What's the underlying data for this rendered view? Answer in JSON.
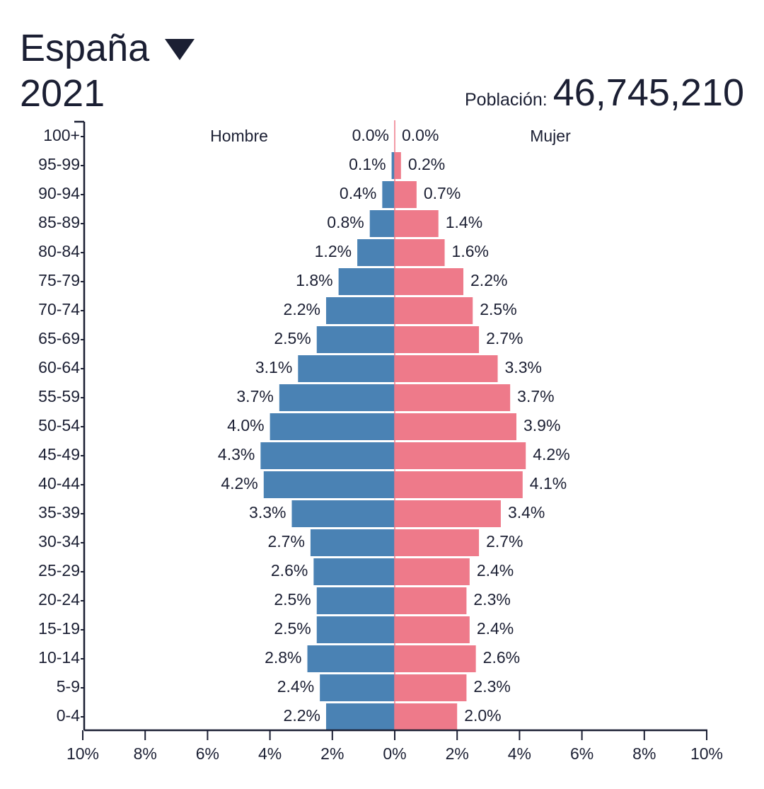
{
  "header": {
    "country": "España",
    "year": "2021",
    "population_label": "Población:",
    "population_value": "46,745,210"
  },
  "colors": {
    "male": "#4a82b4",
    "female": "#ee7a8a",
    "text": "#1b1f33"
  },
  "icons": {
    "country_dropdown": "triangle-down-icon"
  },
  "chart_data": {
    "type": "bar",
    "orientation": "horizontal",
    "layout": "population-pyramid",
    "categories": [
      "0-4",
      "5-9",
      "10-14",
      "15-19",
      "20-24",
      "25-29",
      "30-34",
      "35-39",
      "40-44",
      "45-49",
      "50-54",
      "55-59",
      "60-64",
      "65-69",
      "70-74",
      "75-79",
      "80-84",
      "85-89",
      "90-94",
      "95-99",
      "100+"
    ],
    "series": [
      {
        "name": "Hombre",
        "side": "left",
        "values": [
          2.2,
          2.4,
          2.8,
          2.5,
          2.5,
          2.6,
          2.7,
          3.3,
          4.2,
          4.3,
          4.0,
          3.7,
          3.1,
          2.5,
          2.2,
          1.8,
          1.2,
          0.8,
          0.4,
          0.1,
          0.0
        ]
      },
      {
        "name": "Mujer",
        "side": "right",
        "values": [
          2.0,
          2.3,
          2.6,
          2.4,
          2.3,
          2.4,
          2.7,
          3.4,
          4.1,
          4.2,
          3.9,
          3.7,
          3.3,
          2.7,
          2.5,
          2.2,
          1.6,
          1.4,
          0.7,
          0.2,
          0.0
        ]
      }
    ],
    "unit": "%",
    "xlim": [
      -10,
      10
    ],
    "xticks": [
      "10%",
      "8%",
      "6%",
      "4%",
      "2%",
      "0%",
      "2%",
      "4%",
      "6%",
      "8%",
      "10%"
    ],
    "legend_position": "top"
  }
}
